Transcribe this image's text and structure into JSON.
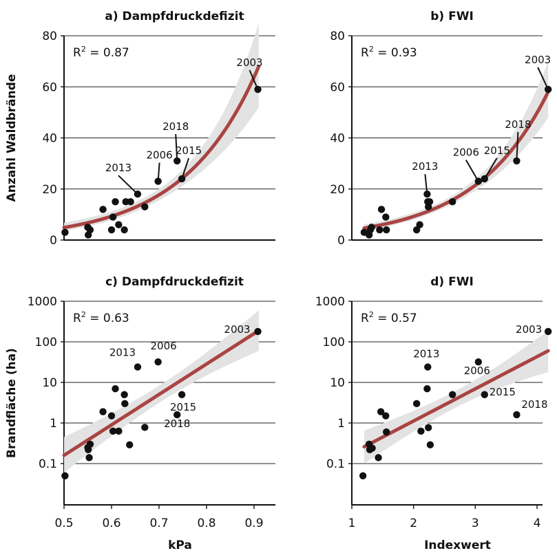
{
  "chart_data": [
    {
      "id": "a",
      "type": "scatter",
      "title": "a) Dampfdruckdefizit",
      "ylabel": "Anzahl Waldbrände",
      "xlabel": "",
      "r2": "0.87",
      "xlim": [
        0.5,
        0.95
      ],
      "ylim": [
        0,
        80
      ],
      "yscale": "linear",
      "xticks": [],
      "yticks": [
        0,
        20,
        40,
        60,
        80
      ],
      "ytick_labels": [
        "0",
        "20",
        "40",
        "60",
        "80"
      ],
      "grid": "horizontal",
      "colors": {
        "points": "#111111",
        "fit": "#a94442",
        "band": "#e3e3e3"
      },
      "points": [
        [
          0.502,
          3
        ],
        [
          0.55,
          5
        ],
        [
          0.551,
          2
        ],
        [
          0.555,
          4
        ],
        [
          0.582,
          12
        ],
        [
          0.6,
          4
        ],
        [
          0.603,
          9
        ],
        [
          0.608,
          15
        ],
        [
          0.615,
          6
        ],
        [
          0.63,
          15
        ],
        [
          0.627,
          4
        ],
        [
          0.64,
          15
        ],
        [
          0.655,
          18
        ],
        [
          0.67,
          13
        ],
        [
          0.698,
          23
        ],
        [
          0.738,
          31
        ],
        [
          0.748,
          24
        ],
        [
          0.908,
          59
        ]
      ],
      "labels": [
        {
          "text": "2003",
          "x": 0.908,
          "y": 59
        },
        {
          "text": "2018",
          "x": 0.738,
          "y": 31
        },
        {
          "text": "2006",
          "x": 0.698,
          "y": 23
        },
        {
          "text": "2015",
          "x": 0.748,
          "y": 24
        },
        {
          "text": "2013",
          "x": 0.655,
          "y": 18
        }
      ],
      "fit": {
        "form": "exponential",
        "x": [
          0.5,
          0.91
        ],
        "y": [
          4.9,
          68
        ]
      },
      "band": {
        "x": [
          0.5,
          0.91
        ],
        "lower": [
          3.6,
          52
        ],
        "upper": [
          6.8,
          85
        ]
      }
    },
    {
      "id": "b",
      "type": "scatter",
      "title": "b) FWI",
      "ylabel": "",
      "xlabel": "",
      "r2": "0.93",
      "xlim": [
        1,
        4.2
      ],
      "ylim": [
        0,
        80
      ],
      "yscale": "linear",
      "xticks": [],
      "yticks": [
        0,
        20,
        40,
        60,
        80
      ],
      "ytick_labels": [
        "0",
        "20",
        "40",
        "60",
        "80"
      ],
      "grid": "horizontal",
      "colors": {
        "points": "#111111",
        "fit": "#a94442",
        "band": "#e3e3e3"
      },
      "points": [
        [
          1.2,
          3
        ],
        [
          1.28,
          2
        ],
        [
          1.32,
          5
        ],
        [
          1.3,
          4
        ],
        [
          1.45,
          4
        ],
        [
          1.48,
          12
        ],
        [
          1.55,
          9
        ],
        [
          1.56,
          4
        ],
        [
          2.05,
          4
        ],
        [
          2.1,
          6
        ],
        [
          2.22,
          18
        ],
        [
          2.23,
          15
        ],
        [
          2.24,
          13
        ],
        [
          2.26,
          15
        ],
        [
          2.63,
          15
        ],
        [
          3.05,
          23
        ],
        [
          3.15,
          24
        ],
        [
          3.67,
          31
        ],
        [
          4.18,
          59
        ]
      ],
      "labels": [
        {
          "text": "2003",
          "x": 4.18,
          "y": 59
        },
        {
          "text": "2018",
          "x": 3.67,
          "y": 31
        },
        {
          "text": "2006",
          "x": 3.05,
          "y": 23
        },
        {
          "text": "2015",
          "x": 3.15,
          "y": 24
        },
        {
          "text": "2013",
          "x": 2.22,
          "y": 18
        }
      ],
      "fit": {
        "form": "exponential",
        "x": [
          1.2,
          4.18
        ],
        "y": [
          4.7,
          58
        ]
      },
      "band": {
        "x": [
          1.2,
          4.18
        ],
        "lower": [
          3.6,
          48
        ],
        "upper": [
          6.2,
          70
        ]
      }
    },
    {
      "id": "c",
      "type": "scatter",
      "title": "c) Dampfdruckdefizit",
      "ylabel": "Brandfläche (ha)",
      "xlabel": "kPa",
      "r2": "0.63",
      "xlim": [
        0.5,
        0.96
      ],
      "ylim": [
        0.01,
        1000
      ],
      "yscale": "log",
      "xticks": [
        0.5,
        0.6,
        0.7,
        0.8,
        0.9
      ],
      "xtick_labels": [
        "0.5",
        "0.6",
        "0.7",
        "0.8",
        "0.9"
      ],
      "yticks": [
        0.1,
        1,
        10,
        100,
        1000
      ],
      "ytick_labels": [
        "0.1",
        "1",
        "10",
        "100",
        "1000"
      ],
      "grid": "horizontal",
      "colors": {
        "points": "#111111",
        "fit": "#a94442",
        "band": "#e3e3e3"
      },
      "points": [
        [
          0.502,
          0.05
        ],
        [
          0.55,
          0.25
        ],
        [
          0.551,
          0.22
        ],
        [
          0.553,
          0.14
        ],
        [
          0.555,
          0.3
        ],
        [
          0.582,
          1.9
        ],
        [
          0.6,
          1.5
        ],
        [
          0.603,
          0.63
        ],
        [
          0.608,
          7
        ],
        [
          0.615,
          0.63
        ],
        [
          0.627,
          5
        ],
        [
          0.628,
          3
        ],
        [
          0.638,
          0.29
        ],
        [
          0.655,
          24
        ],
        [
          0.67,
          0.78
        ],
        [
          0.698,
          32
        ],
        [
          0.738,
          1.6
        ],
        [
          0.748,
          5
        ],
        [
          0.908,
          180
        ]
      ],
      "labels": [
        {
          "text": "2003",
          "x": 0.908,
          "y": 180
        },
        {
          "text": "2006",
          "x": 0.698,
          "y": 32
        },
        {
          "text": "2013",
          "x": 0.655,
          "y": 24
        },
        {
          "text": "2015",
          "x": 0.748,
          "y": 5
        },
        {
          "text": "2018",
          "x": 0.738,
          "y": 1.6
        }
      ],
      "fit": {
        "form": "loglinear",
        "x": [
          0.5,
          0.91
        ],
        "y": [
          0.16,
          190
        ]
      },
      "band": {
        "x": [
          0.5,
          0.91
        ],
        "lower": [
          0.06,
          60
        ],
        "upper": [
          0.45,
          600
        ]
      }
    },
    {
      "id": "d",
      "type": "scatter",
      "title": "d) FWI",
      "ylabel": "",
      "xlabel": "Indexwert",
      "r2": "0.57",
      "xlim": [
        1,
        4.2
      ],
      "ylim": [
        0.01,
        1000
      ],
      "yscale": "log",
      "xticks": [
        1,
        2,
        3,
        4
      ],
      "xtick_labels": [
        "1",
        "2",
        "3",
        "4"
      ],
      "yticks": [
        0.1,
        1,
        10,
        100,
        1000
      ],
      "ytick_labels": [
        "0.1",
        "1",
        "10",
        "100",
        "1000"
      ],
      "grid": "horizontal",
      "colors": {
        "points": "#111111",
        "fit": "#a94442",
        "band": "#e3e3e3"
      },
      "points": [
        [
          1.18,
          0.05
        ],
        [
          1.28,
          0.3
        ],
        [
          1.29,
          0.22
        ],
        [
          1.33,
          0.24
        ],
        [
          1.43,
          0.14
        ],
        [
          1.47,
          1.9
        ],
        [
          1.55,
          1.5
        ],
        [
          1.56,
          0.6
        ],
        [
          2.05,
          3
        ],
        [
          2.12,
          0.63
        ],
        [
          2.22,
          7
        ],
        [
          2.23,
          24
        ],
        [
          2.24,
          0.77
        ],
        [
          2.27,
          0.29
        ],
        [
          2.63,
          5
        ],
        [
          3.05,
          32
        ],
        [
          3.15,
          5
        ],
        [
          3.67,
          1.6
        ],
        [
          4.18,
          180
        ]
      ],
      "labels": [
        {
          "text": "2003",
          "x": 4.18,
          "y": 180
        },
        {
          "text": "2013",
          "x": 2.23,
          "y": 24
        },
        {
          "text": "2006",
          "x": 3.05,
          "y": 32
        },
        {
          "text": "2015",
          "x": 3.15,
          "y": 5
        },
        {
          "text": "2018",
          "x": 3.67,
          "y": 1.6
        }
      ],
      "fit": {
        "form": "loglinear",
        "x": [
          1.2,
          4.18
        ],
        "y": [
          0.26,
          60
        ]
      },
      "band": {
        "x": [
          1.2,
          4.18
        ],
        "lower": [
          0.1,
          18
        ],
        "upper": [
          0.65,
          190
        ]
      }
    }
  ]
}
